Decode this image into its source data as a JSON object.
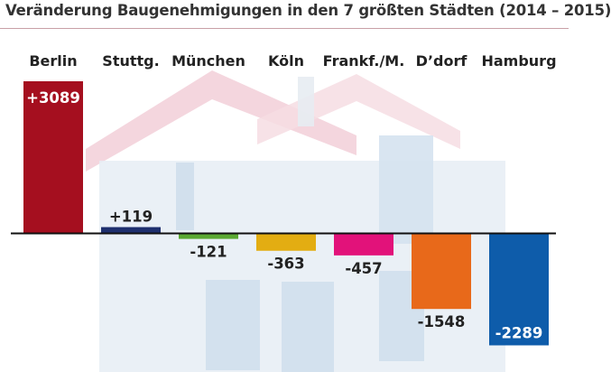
{
  "chart_data": {
    "type": "bar",
    "title": "Veränderung Baugenehmigungen in den 7 größten Städten (2014 – 2015)",
    "categories": [
      "Berlin",
      "Stuttg.",
      "München",
      "Köln",
      "Frankf./M.",
      "D’dorf",
      "Hamburg"
    ],
    "values": [
      3089,
      119,
      -121,
      -363,
      -457,
      -1548,
      -2289
    ],
    "value_labels": [
      "+3089",
      "+119",
      "-121",
      "-363",
      "-457",
      "-1548",
      "-2289"
    ],
    "colors": [
      "#a50f1f",
      "#1e2f6e",
      "#5aa832",
      "#e3ad12",
      "#e2127a",
      "#e8691a",
      "#0e5caa"
    ],
    "xlabel": "",
    "ylabel": "",
    "ylim": [
      -2500,
      3500
    ],
    "grid": false,
    "legend": "none"
  }
}
